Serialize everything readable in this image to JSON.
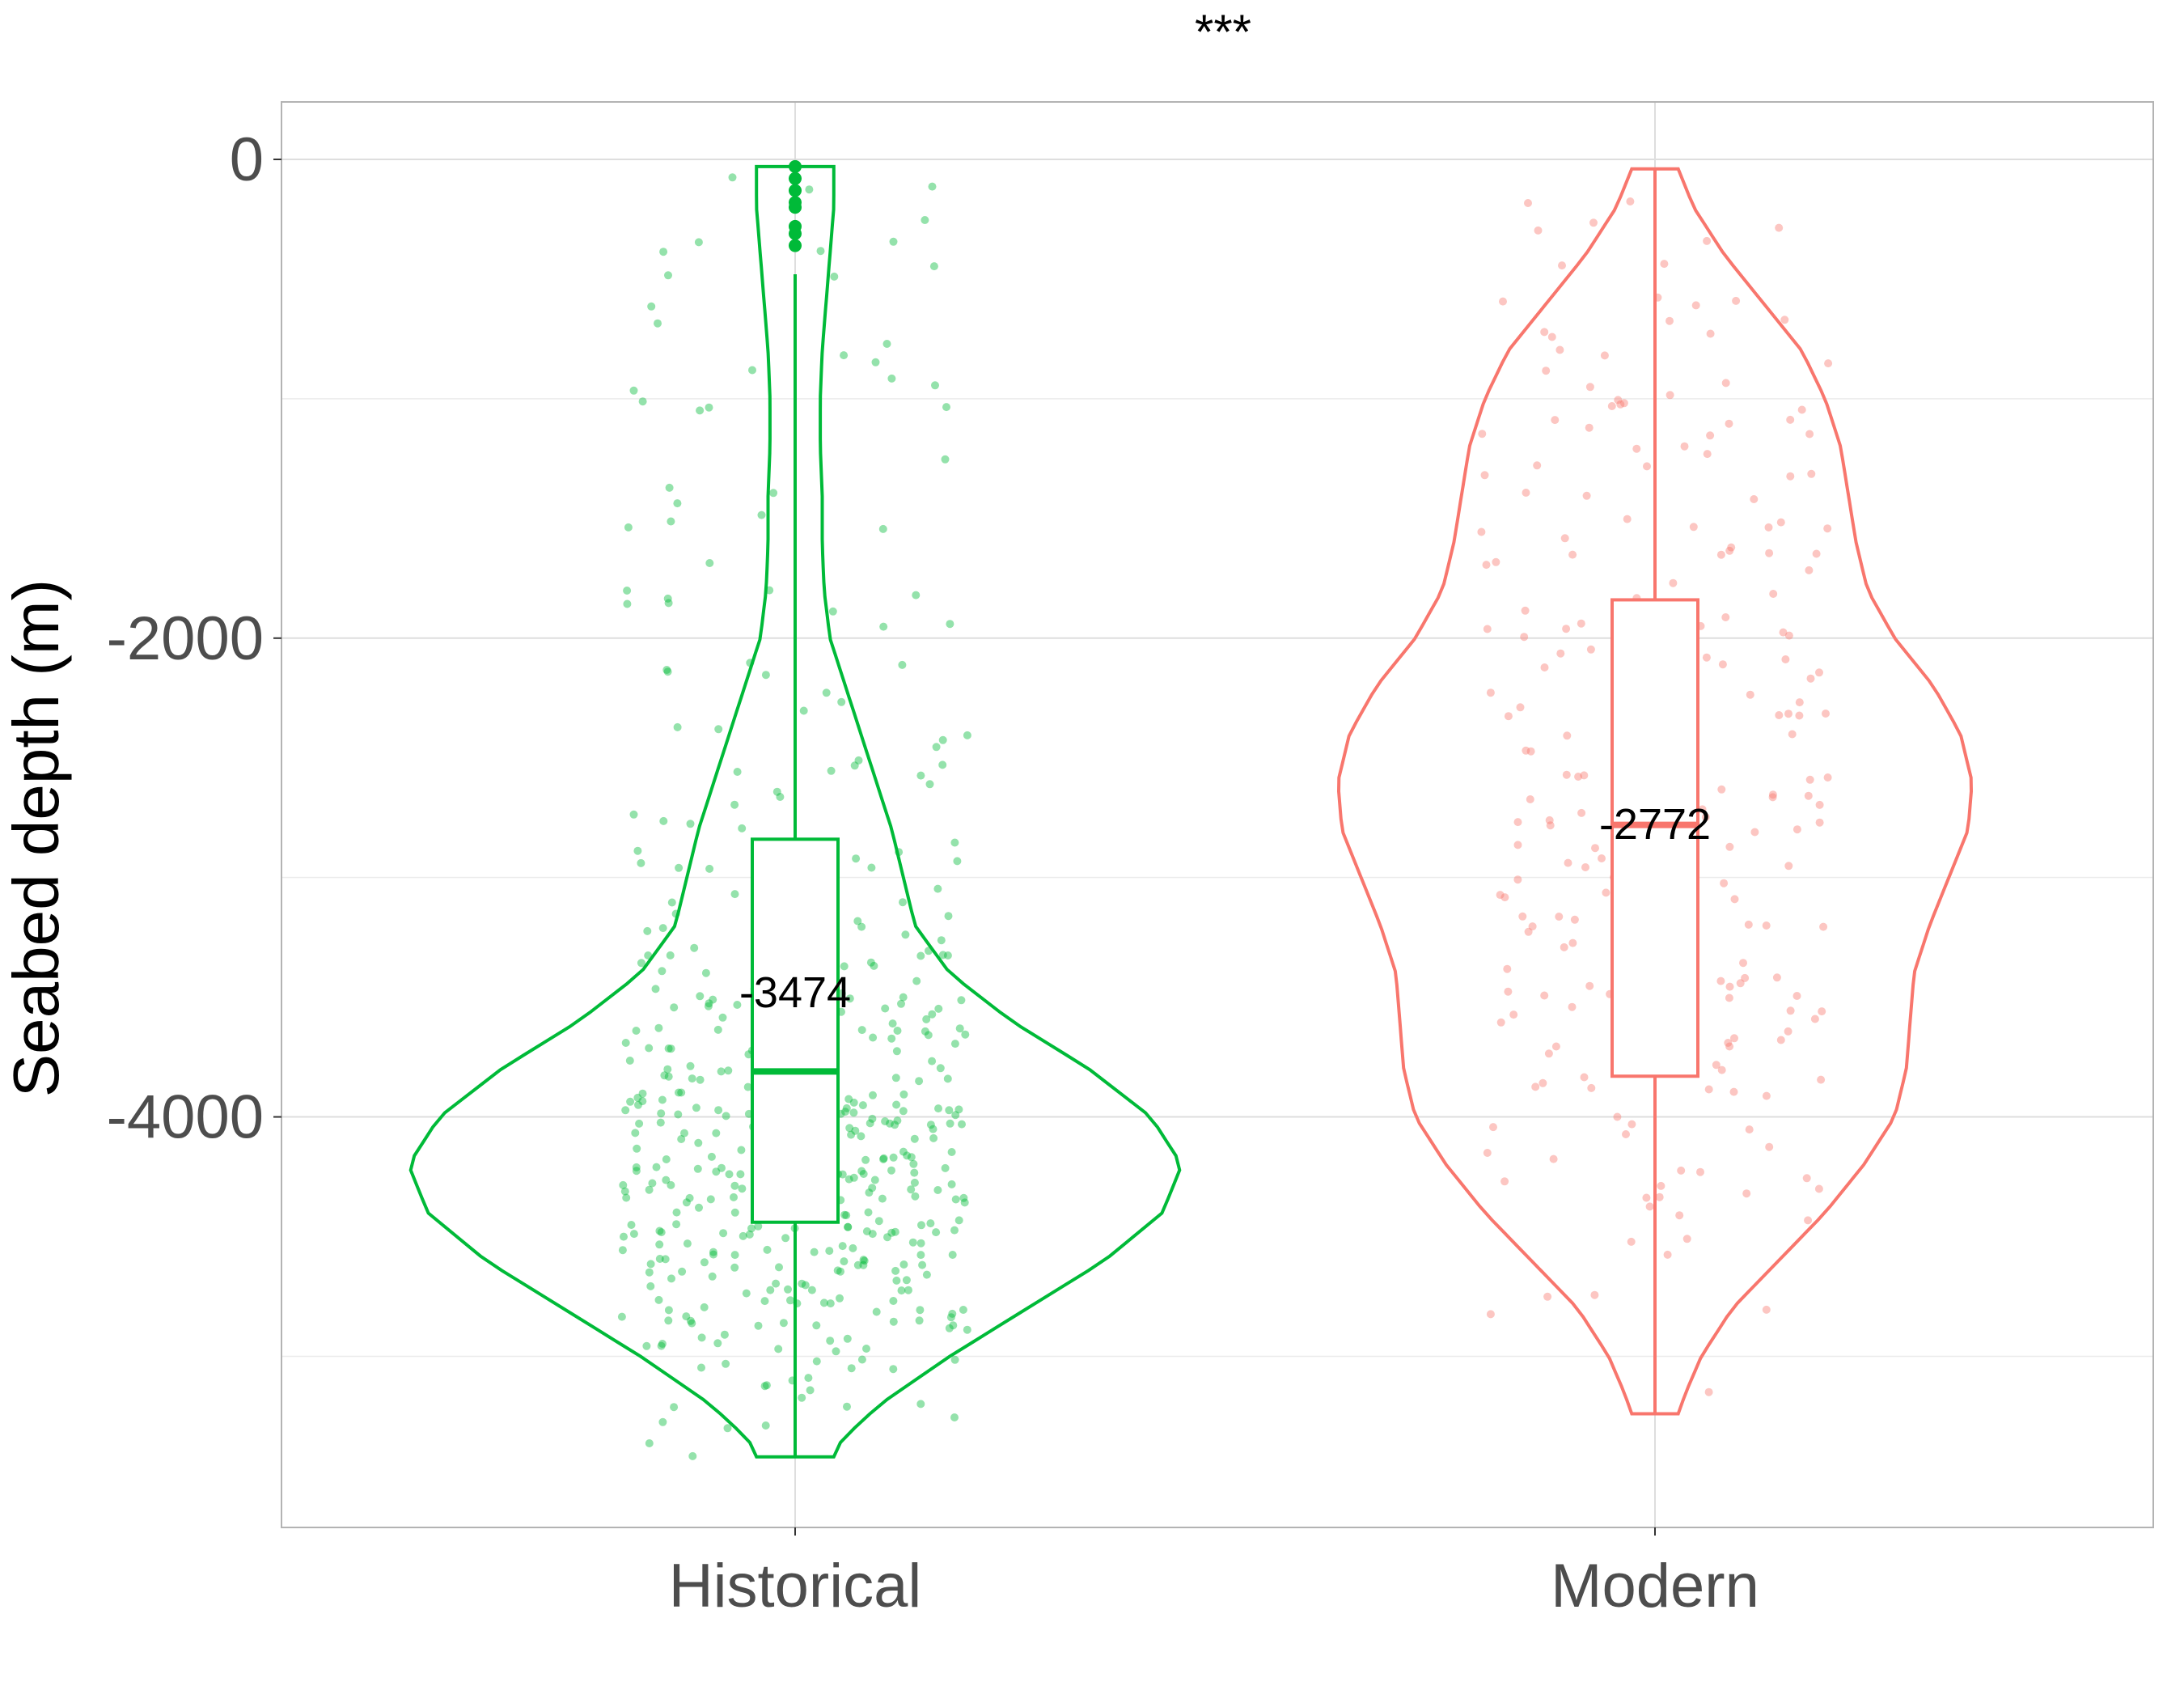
{
  "chart_data": {
    "type": "violin",
    "title": "***",
    "xlabel": "",
    "ylabel": "Seabed depth (m)",
    "ylim": [
      -5715,
      240
    ],
    "yticks": [
      0,
      -2000,
      -4000
    ],
    "grid": true,
    "categories": [
      "Historical",
      "Modern"
    ],
    "colors": {
      "Historical": "#00BA38",
      "Modern": "#F8766D"
    },
    "series": [
      {
        "name": "Historical",
        "color": "#00BA38",
        "min": -5420,
        "max": -30,
        "whisker_low": -5420,
        "whisker_high": -480,
        "q1": -4440,
        "median": -3810,
        "q3": -2840,
        "mean_label": -3474,
        "outliers": [
          -30,
          -80,
          -130,
          -180,
          -200,
          -280,
          -310,
          -360
        ],
        "violin_halfwidth": [
          [
            -30,
            0.1
          ],
          [
            -200,
            0.1
          ],
          [
            -400,
            0.09
          ],
          [
            -600,
            0.08
          ],
          [
            -800,
            0.07
          ],
          [
            -1000,
            0.065
          ],
          [
            -1200,
            0.065
          ],
          [
            -1400,
            0.07
          ],
          [
            -1600,
            0.07
          ],
          [
            -1800,
            0.075
          ],
          [
            -2000,
            0.09
          ],
          [
            -2200,
            0.13
          ],
          [
            -2400,
            0.17
          ],
          [
            -2600,
            0.21
          ],
          [
            -2800,
            0.25
          ],
          [
            -3000,
            0.28
          ],
          [
            -3200,
            0.31
          ],
          [
            -3400,
            0.4
          ],
          [
            -3600,
            0.56
          ],
          [
            -3800,
            0.76
          ],
          [
            -4000,
            0.92
          ],
          [
            -4200,
            1.0
          ],
          [
            -4400,
            0.95
          ],
          [
            -4600,
            0.8
          ],
          [
            -4800,
            0.6
          ],
          [
            -5000,
            0.4
          ],
          [
            -5200,
            0.22
          ],
          [
            -5350,
            0.12
          ],
          [
            -5420,
            0.1
          ]
        ]
      },
      {
        "name": "Modern",
        "color": "#F8766D",
        "min": -5240,
        "max": -40,
        "whisker_low": -5240,
        "whisker_high": -40,
        "q1": -3830,
        "median": -2780,
        "q3": -1840,
        "mean_label": -2772,
        "outliers": [],
        "violin_halfwidth": [
          [
            -40,
            0.06
          ],
          [
            -200,
            0.1
          ],
          [
            -400,
            0.18
          ],
          [
            -600,
            0.28
          ],
          [
            -800,
            0.38
          ],
          [
            -1000,
            0.44
          ],
          [
            -1200,
            0.48
          ],
          [
            -1400,
            0.5
          ],
          [
            -1600,
            0.52
          ],
          [
            -1800,
            0.55
          ],
          [
            -2000,
            0.62
          ],
          [
            -2200,
            0.72
          ],
          [
            -2400,
            0.79
          ],
          [
            -2600,
            0.82
          ],
          [
            -2800,
            0.81
          ],
          [
            -3000,
            0.76
          ],
          [
            -3200,
            0.71
          ],
          [
            -3400,
            0.67
          ],
          [
            -3600,
            0.66
          ],
          [
            -3800,
            0.65
          ],
          [
            -4000,
            0.62
          ],
          [
            -4200,
            0.54
          ],
          [
            -4400,
            0.44
          ],
          [
            -4600,
            0.32
          ],
          [
            -4800,
            0.2
          ],
          [
            -5000,
            0.12
          ],
          [
            -5150,
            0.08
          ],
          [
            -5240,
            0.06
          ]
        ]
      }
    ]
  }
}
